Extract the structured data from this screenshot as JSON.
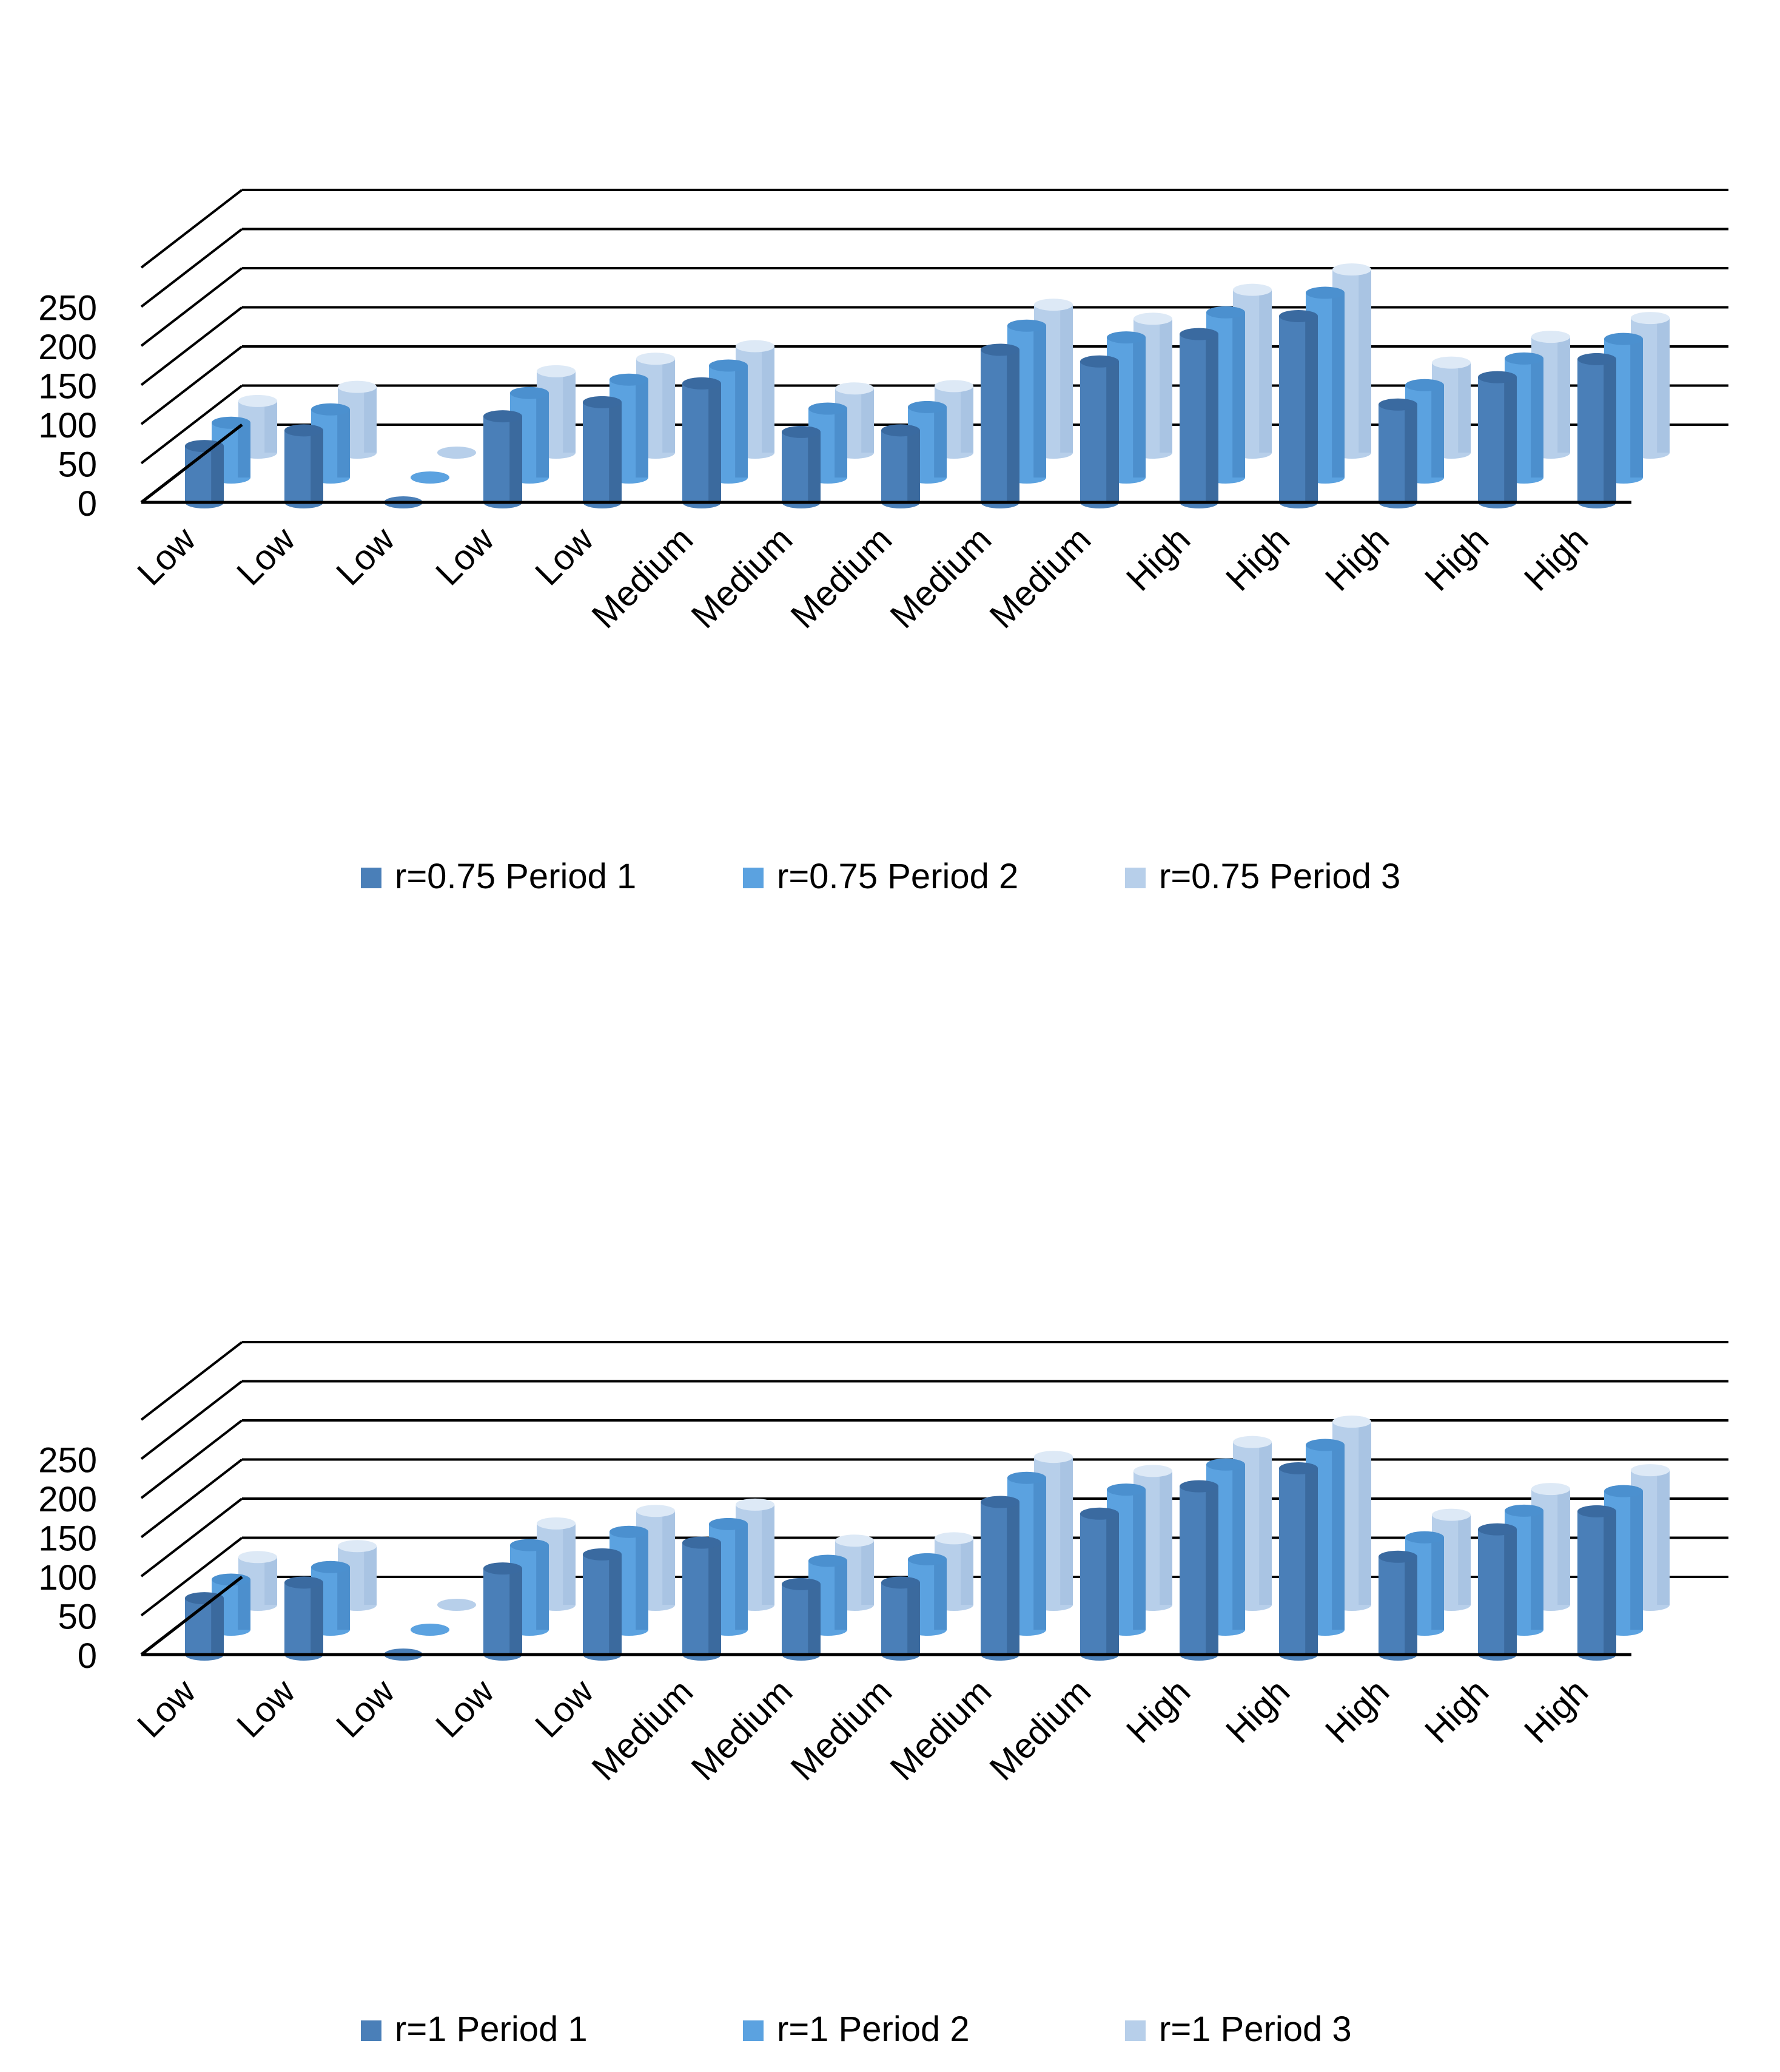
{
  "colors": {
    "p1_body": "#4a7fb8",
    "p1_top": "#3a6aa0",
    "p1_shade": "#2f5a89",
    "p2_body": "#5ba2e0",
    "p2_top": "#4b90cf",
    "p2_shade": "#3f7fbd",
    "p3_body": "#b7cfea",
    "p3_top": "#dde9f6",
    "p3_shade": "#9fbbdc",
    "axis": "#000000",
    "text": "#000000",
    "bg": "#ffffff"
  },
  "chart_data": [
    {
      "type": "bar",
      "subtype": "3d-clustered-cylinder",
      "categories": [
        "Low",
        "Low",
        "Low",
        "Low",
        "Low",
        "Medium",
        "Medium",
        "Medium",
        "Medium",
        "Medium",
        "High",
        "High",
        "High",
        "High",
        "High"
      ],
      "yticks": [
        "0",
        "50",
        "100",
        "150",
        "200",
        "250"
      ],
      "ylim": [
        0,
        300
      ],
      "series": [
        {
          "name": "r=0.75 Period 1",
          "values": [
            72,
            92,
            0,
            110,
            128,
            152,
            90,
            92,
            195,
            180,
            215,
            238,
            125,
            160,
            183
          ]
        },
        {
          "name": "r=0.75 Period 2",
          "values": [
            70,
            87,
            0,
            108,
            125,
            143,
            88,
            90,
            194,
            179,
            211,
            236,
            118,
            152,
            177
          ]
        },
        {
          "name": "r=0.75 Period 3",
          "values": [
            66,
            84,
            0,
            104,
            120,
            136,
            82,
            85,
            189,
            171,
            208,
            234,
            115,
            148,
            172
          ]
        }
      ],
      "legend_position": "bottom"
    },
    {
      "type": "bar",
      "subtype": "3d-clustered-cylinder",
      "categories": [
        "Low",
        "Low",
        "Low",
        "Low",
        "Low",
        "Medium",
        "Medium",
        "Medium",
        "Medium",
        "Medium",
        "High",
        "High",
        "High",
        "High",
        "High"
      ],
      "yticks": [
        "0",
        "50",
        "100",
        "150",
        "200",
        "250"
      ],
      "ylim": [
        0,
        300
      ],
      "series": [
        {
          "name": "r=1 Period 1",
          "values": [
            72,
            92,
            0,
            110,
            128,
            143,
            90,
            92,
            195,
            180,
            215,
            238,
            125,
            160,
            183
          ]
        },
        {
          "name": "r=1 Period 2",
          "values": [
            64,
            80,
            0,
            108,
            125,
            135,
            88,
            90,
            194,
            179,
            211,
            236,
            118,
            152,
            177
          ]
        },
        {
          "name": "r=1 Period 3",
          "values": [
            61,
            75,
            0,
            104,
            120,
            128,
            82,
            85,
            189,
            171,
            208,
            234,
            115,
            148,
            172
          ]
        }
      ],
      "legend_position": "bottom"
    }
  ]
}
